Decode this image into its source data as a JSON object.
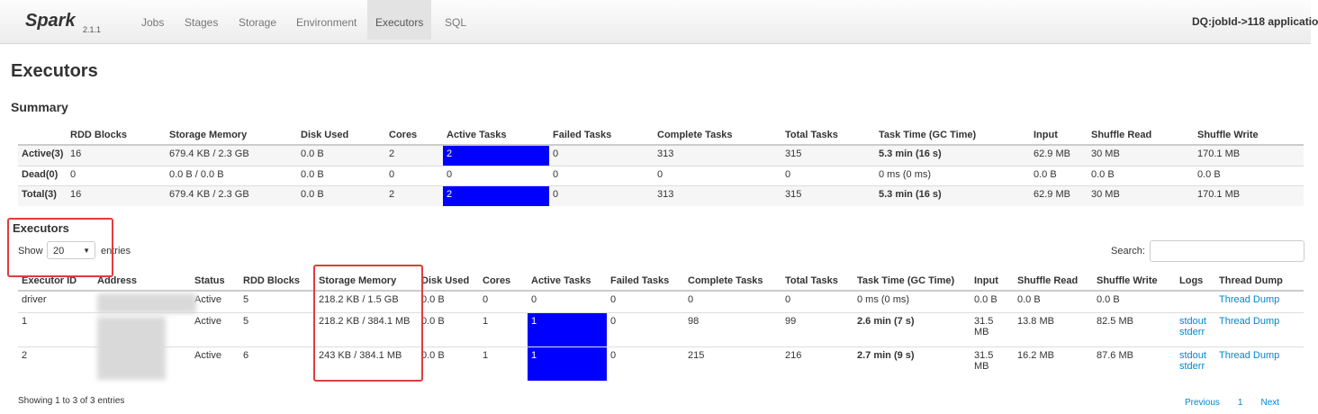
{
  "nav": {
    "logo": "Spark",
    "version": "2.1.1",
    "tabs": [
      "Jobs",
      "Stages",
      "Storage",
      "Environment",
      "Executors",
      "SQL"
    ],
    "active_tab": 4,
    "app_title": "DQ:jobId->118 applicatio"
  },
  "page_title": "Executors",
  "summary": {
    "title": "Summary",
    "headers": [
      null,
      "RDD Blocks",
      "Storage Memory",
      "Disk Used",
      "Cores",
      "Active Tasks",
      "Failed Tasks",
      "Complete Tasks",
      "Total Tasks",
      "Task Time (GC Time)",
      "Input",
      "Shuffle Read",
      "Shuffle Write"
    ],
    "rows": [
      [
        "Active(3)",
        "16",
        "679.4 KB / 2.3 GB",
        "0.0 B",
        "2",
        "2",
        "0",
        "313",
        "315",
        "5.3 min (16 s)",
        "62.9 MB",
        "30 MB",
        "170.1 MB"
      ],
      [
        "Dead(0)",
        "0",
        "0.0 B / 0.0 B",
        "0.0 B",
        "0",
        "0",
        "0",
        "0",
        "0",
        "0 ms (0 ms)",
        "0.0 B",
        "0.0 B",
        "0.0 B"
      ],
      [
        "Total(3)",
        "16",
        "679.4 KB / 2.3 GB",
        "0.0 B",
        "2",
        "2",
        "0",
        "313",
        "315",
        "5.3 min (16 s)",
        "62.9 MB",
        "30 MB",
        "170.1 MB"
      ]
    ]
  },
  "executors": {
    "title": "Executors",
    "show_label": "Show",
    "page_size": "20",
    "entries_label": "entries",
    "search_label": "Search:",
    "headers": [
      "Executor ID",
      "Address",
      "Status",
      "RDD Blocks",
      "Storage Memory",
      "Disk Used",
      "Cores",
      "Active Tasks",
      "Failed Tasks",
      "Complete Tasks",
      "Total Tasks",
      "Task Time (GC Time)",
      "Input",
      "Shuffle Read",
      "Shuffle Write",
      "Logs",
      "Thread Dump"
    ],
    "rows": [
      [
        "driver",
        null,
        "Active",
        "5",
        "218.2 KB / 1.5 GB",
        "0.0 B",
        "0",
        "0",
        "0",
        "0",
        "0",
        "0 ms (0 ms)",
        "0.0 B",
        "0.0 B",
        "0.0 B",
        null,
        "Thread Dump"
      ],
      [
        "1",
        null,
        "Active",
        "5",
        "218.2 KB / 384.1 MB",
        "0.0 B",
        "1",
        "1",
        "0",
        "98",
        "99",
        "2.6 min (7 s)",
        "31.5 MB",
        "13.8 MB",
        "82.5 MB",
        [
          "stdout",
          "stderr"
        ],
        "Thread Dump"
      ],
      [
        "2",
        null,
        "Active",
        "6",
        "243 KB / 384.1 MB",
        "0.0 B",
        "1",
        "1",
        "0",
        "215",
        "216",
        "2.7 min (9 s)",
        "31.5 MB",
        "16.2 MB",
        "87.6 MB",
        [
          "stdout",
          "stderr"
        ],
        "Thread Dump"
      ]
    ],
    "footer": "Showing 1 to 3 of 3 entries",
    "pagination": [
      "Previous",
      "1",
      "Next"
    ]
  }
}
